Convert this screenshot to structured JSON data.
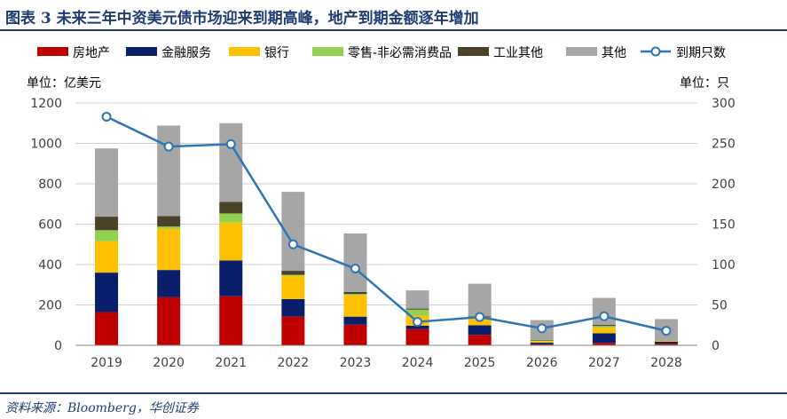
{
  "title": "图表 3 未来三年中资美元债市场迎来到期高峰，地产到期金额逐年增加",
  "source": "资料来源：Bloomberg，华创证券",
  "colors": {
    "header": "#1f3b73",
    "grid": "#d0d0d0",
    "axis_text": "#404040"
  },
  "chart_data": {
    "type": "bar",
    "stacked": true,
    "categories": [
      "2019",
      "2020",
      "2021",
      "2022",
      "2023",
      "2024",
      "2025",
      "2026",
      "2027",
      "2028"
    ],
    "series": [
      {
        "name": "房地产",
        "color": "#c00000",
        "values": [
          165,
          238,
          243,
          142,
          102,
          80,
          52,
          5,
          12,
          8
        ]
      },
      {
        "name": "金融服务",
        "color": "#0a1f6b",
        "values": [
          195,
          135,
          177,
          87,
          40,
          17,
          47,
          8,
          48,
          10
        ]
      },
      {
        "name": "银行",
        "color": "#ffc000",
        "values": [
          155,
          205,
          188,
          115,
          107,
          50,
          35,
          8,
          28,
          5
        ]
      },
      {
        "name": "零售-非必需消费品",
        "color": "#92d050",
        "values": [
          55,
          10,
          45,
          5,
          5,
          30,
          5,
          3,
          8,
          2
        ]
      },
      {
        "name": "工业其他",
        "color": "#4a4328",
        "values": [
          67,
          52,
          57,
          20,
          10,
          5,
          5,
          3,
          5,
          2
        ]
      },
      {
        "name": "其他",
        "color": "#a6a6a6",
        "values": [
          338,
          448,
          390,
          391,
          290,
          90,
          161,
          98,
          134,
          103
        ]
      }
    ],
    "line_series": {
      "name": "到期只数",
      "color": "#2e75b6",
      "axis": "right",
      "values": [
        283,
        246,
        249,
        125,
        95,
        29,
        35,
        21,
        36,
        18
      ]
    },
    "ylabel": "单位：亿美元",
    "y2label": "单位：只",
    "ylim": [
      0,
      1200
    ],
    "y2lim": [
      0,
      300
    ],
    "yticks": [
      "0",
      "200",
      "400",
      "600",
      "800",
      "1000",
      "1200"
    ],
    "y2ticks": [
      "0",
      "50",
      "100",
      "150",
      "200",
      "250",
      "300"
    ],
    "grid": true,
    "legend_position": "top"
  }
}
